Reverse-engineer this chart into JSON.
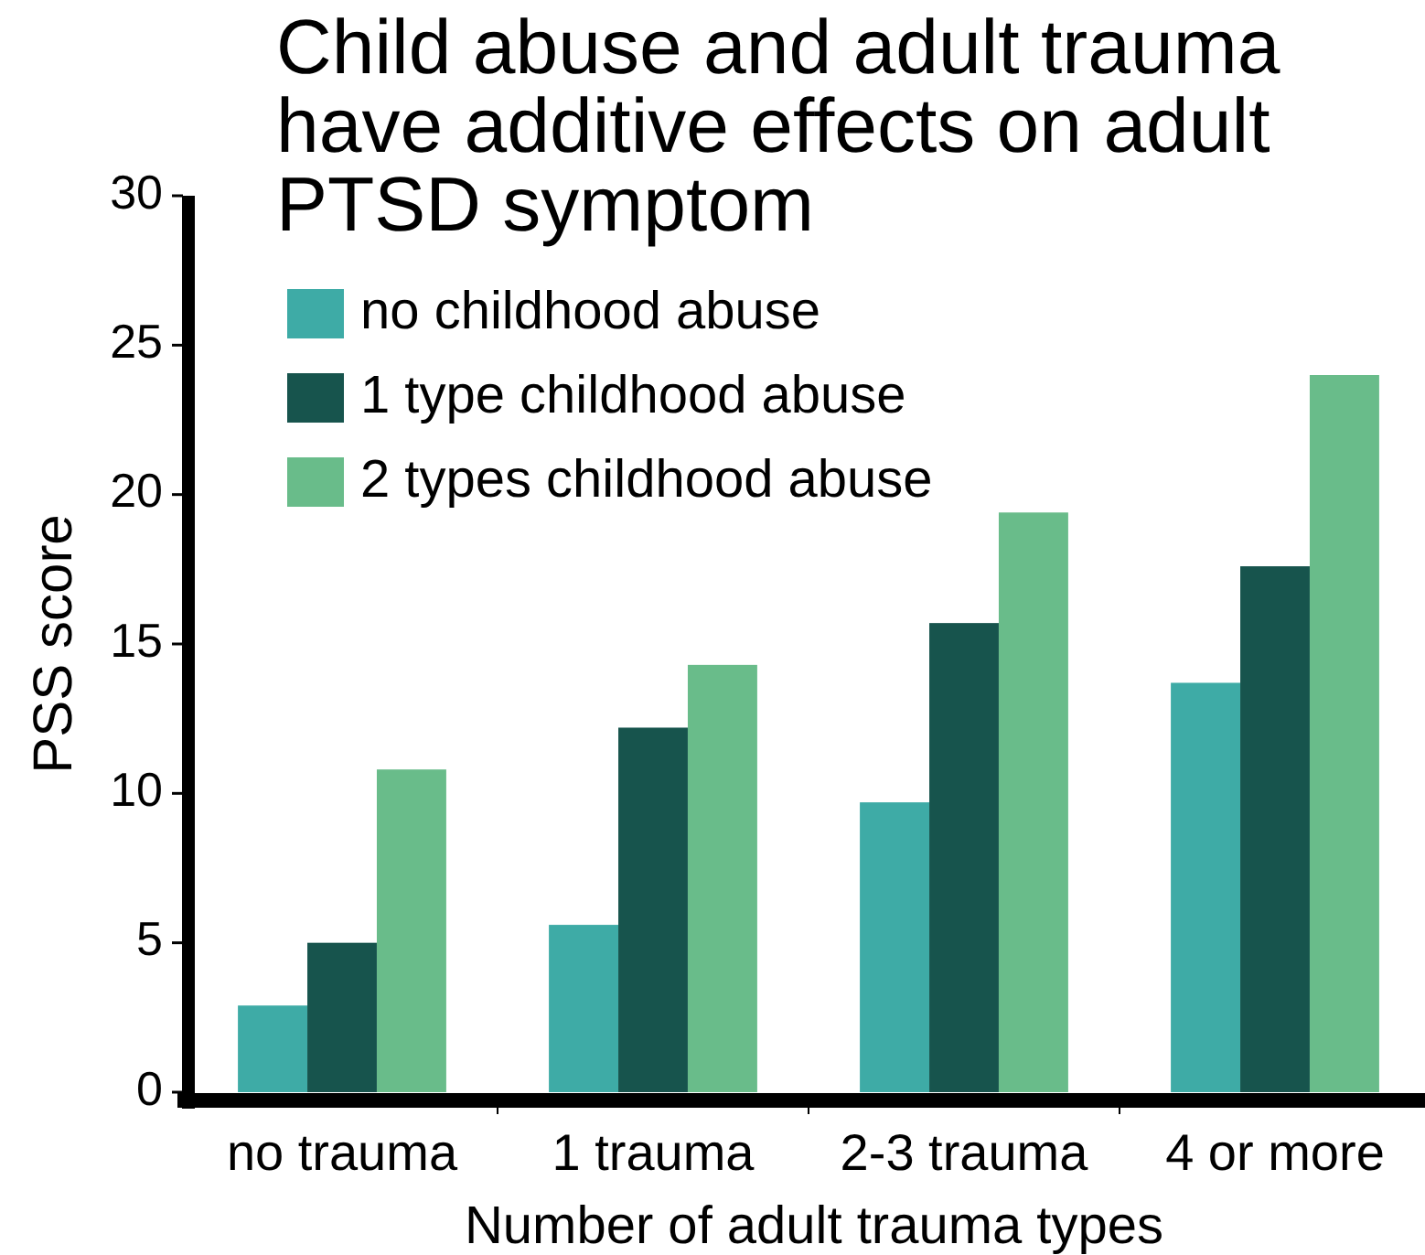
{
  "chart_data": {
    "type": "bar",
    "title": "Child abuse and adult trauma have additive effects on adult PTSD symptom",
    "xlabel": "Number of adult trauma types",
    "ylabel": "PSS score",
    "categories": [
      "no trauma",
      "1 trauma",
      "2-3 trauma",
      "4 or more"
    ],
    "series": [
      {
        "name": "no childhood abuse",
        "color": "#3eaba6",
        "values": [
          2.9,
          5.6,
          9.7,
          13.7
        ]
      },
      {
        "name": "1 type childhood abuse",
        "color": "#17544d",
        "values": [
          5.0,
          12.2,
          15.7,
          17.6
        ]
      },
      {
        "name": "2 types childhood abuse",
        "color": "#69bc8a",
        "values": [
          10.8,
          14.3,
          19.4,
          24.0
        ]
      }
    ],
    "ylim": [
      0,
      30
    ],
    "yticks": [
      0,
      5,
      10,
      15,
      20,
      25,
      30
    ],
    "legend": "top left"
  }
}
